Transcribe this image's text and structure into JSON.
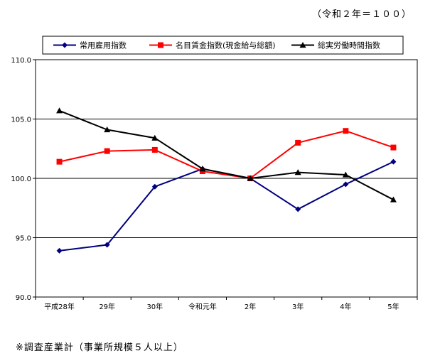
{
  "base_note": "（令和２年＝１００）",
  "footnote": "※調査産業計（事業所規模５人以上）",
  "chart_data": {
    "type": "line",
    "categories": [
      "平成28年",
      "29年",
      "30年",
      "令和元年",
      "2年",
      "3年",
      "4年",
      "5年"
    ],
    "ylim": [
      90.0,
      110.0
    ],
    "yticks": [
      "90.0",
      "95.0",
      "100.0",
      "105.0",
      "110.0"
    ],
    "grid": true,
    "legend_position": "top",
    "series": [
      {
        "name": "常用雇用指数",
        "color": "#000080",
        "marker": "diamond",
        "values": [
          93.9,
          94.4,
          99.3,
          100.8,
          100.0,
          97.4,
          99.5,
          101.4
        ]
      },
      {
        "name": "名目賃金指数(現金給与総額)",
        "color": "#ff0000",
        "marker": "square",
        "values": [
          101.4,
          102.3,
          102.4,
          100.6,
          100.0,
          103.0,
          104.0,
          102.6
        ]
      },
      {
        "name": "総実労働時間指数",
        "color": "#000000",
        "marker": "triangle",
        "values": [
          105.7,
          104.1,
          103.4,
          100.8,
          100.0,
          100.5,
          100.3,
          98.2
        ]
      }
    ]
  }
}
